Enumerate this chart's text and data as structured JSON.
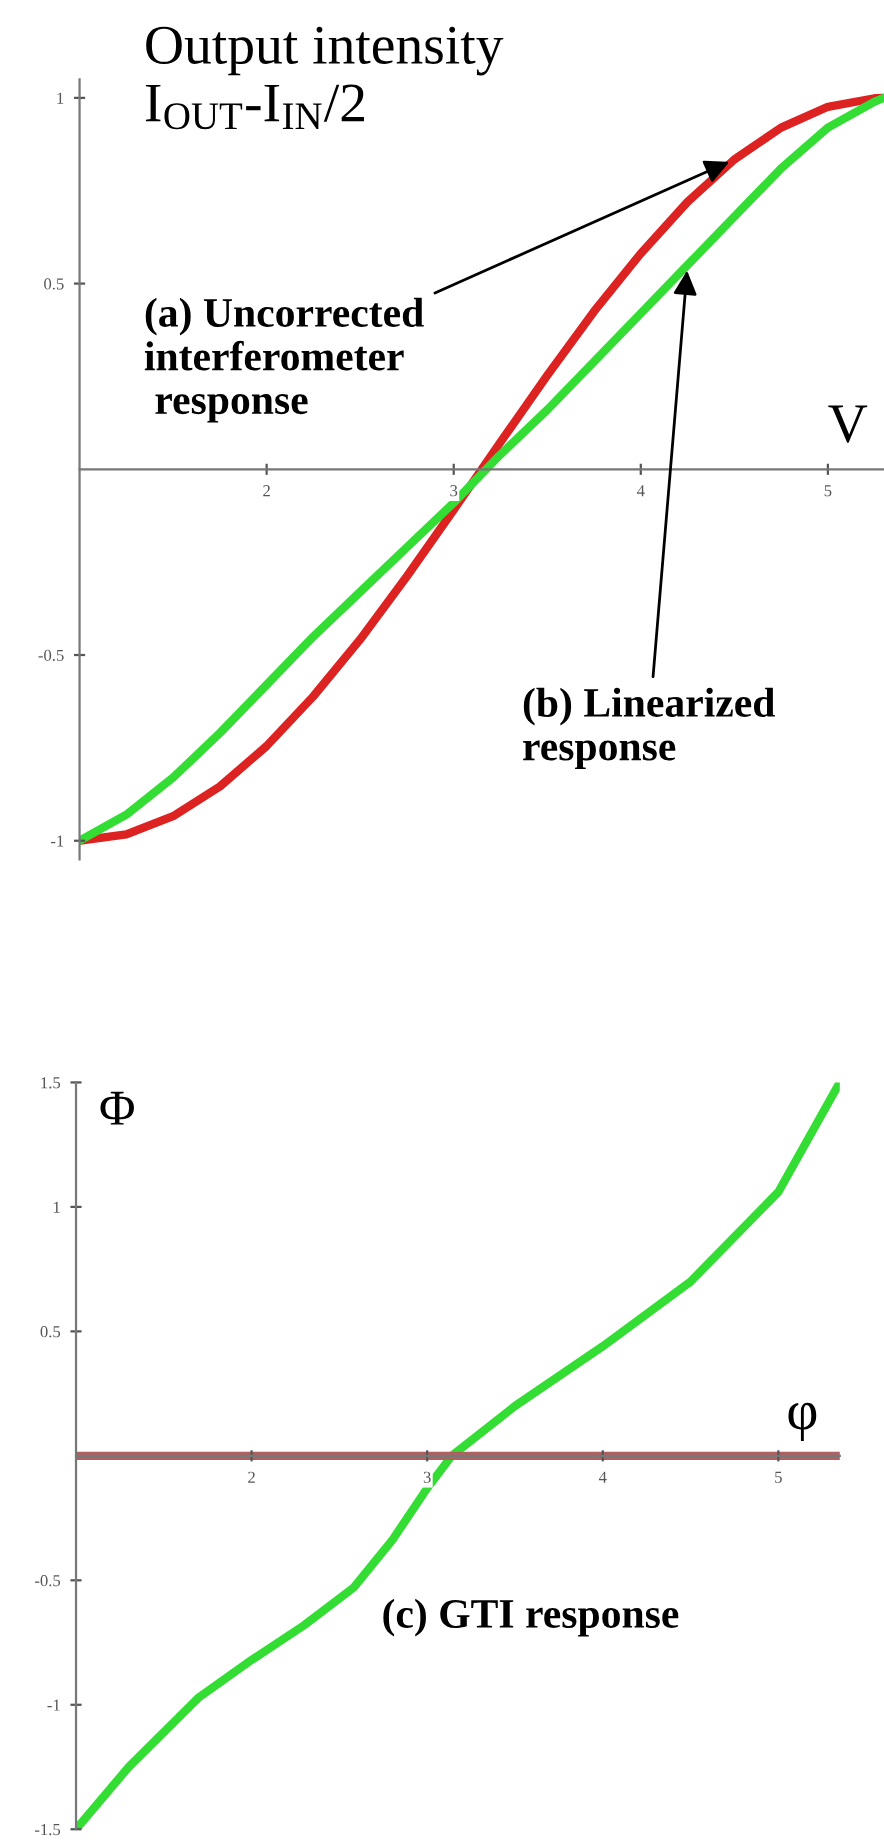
{
  "chart_data": [
    {
      "type": "line",
      "ylabel": "Output intensity\nI$_{OUT}$-I$_{IN}$/2",
      "xlabel": "V",
      "x": [
        1,
        1.25,
        1.5,
        1.75,
        2,
        2.25,
        2.5,
        2.75,
        3,
        3.25,
        3.5,
        3.75,
        4,
        4.25,
        4.5,
        4.75,
        5,
        5.25,
        5.3
      ],
      "series": [
        {
          "color": "#dd2222",
          "values": [
            -1,
            -0.983,
            -0.934,
            -0.854,
            -0.745,
            -0.611,
            -0.458,
            -0.288,
            -0.109,
            0.073,
            0.253,
            0.425,
            0.581,
            0.72,
            0.834,
            0.92,
            0.976,
            0.999,
            1
          ]
        },
        {
          "color": "#33dd33",
          "values": [
            -1,
            -0.93,
            -0.83,
            -0.71,
            -0.58,
            -0.45,
            -0.33,
            -0.21,
            -0.09,
            0.04,
            0.16,
            0.29,
            0.42,
            0.55,
            0.68,
            0.81,
            0.92,
            0.99,
            1
          ]
        }
      ],
      "xlim": [
        1,
        5.3
      ],
      "ylim": [
        -1.05,
        1.05
      ],
      "xticks": [
        2,
        3,
        4,
        5
      ],
      "yticks": [
        -1,
        -0.5,
        0.5,
        1
      ],
      "annotations": [
        {
          "text": "(a) Uncorrected\ninterferometer\n response",
          "x": 4.5,
          "y": 0.834
        },
        {
          "text": "(b) Linearized\nresponse",
          "x": 4.25,
          "y": 0.55
        }
      ],
      "grid": false,
      "legend": false,
      "marker": "none",
      "line_style": "solid"
    },
    {
      "type": "line",
      "ylabel": "Φ",
      "xlabel": "φ",
      "x": [
        1,
        1.3,
        1.7,
        2,
        2.3,
        2.58,
        2.8,
        3,
        3.14,
        3.5,
        4,
        4.5,
        5,
        5.35
      ],
      "series": [
        {
          "color": "#33dd33",
          "values": [
            -1.5,
            -1.25,
            -0.97,
            -0.82,
            -0.68,
            -0.53,
            -0.34,
            -0.13,
            0,
            0.2,
            0.44,
            0.7,
            1.06,
            1.5
          ]
        },
        {
          "color": "#b06060",
          "values": [
            0,
            0,
            0,
            0,
            0,
            0,
            0,
            0,
            0,
            0,
            0,
            0,
            0,
            0
          ]
        }
      ],
      "xlim": [
        1,
        5.35
      ],
      "ylim": [
        -1.5,
        1.5
      ],
      "xticks": [
        2,
        3,
        4,
        5
      ],
      "yticks": [
        -1.5,
        -1,
        -0.5,
        0.5,
        1,
        1.5
      ],
      "annotations": [
        "(c) GTI response"
      ],
      "grid": false,
      "legend": false,
      "marker": "none",
      "line_style": "solid"
    }
  ]
}
